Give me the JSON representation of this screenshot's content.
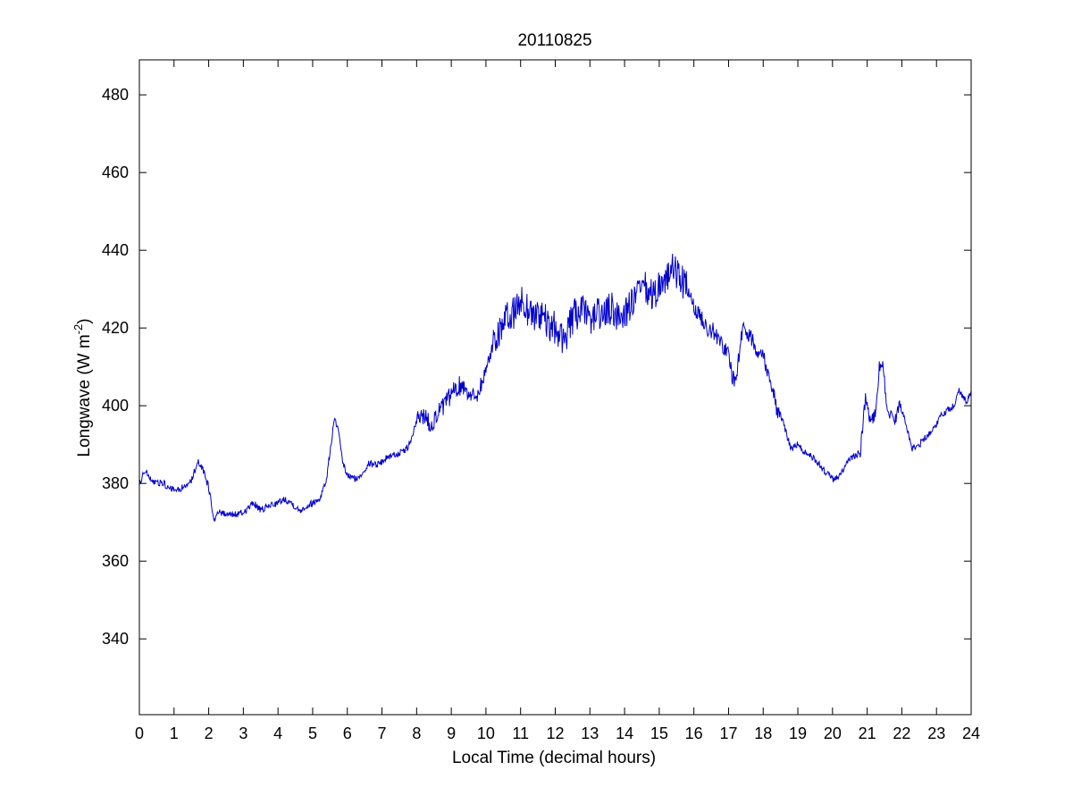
{
  "chart_data": {
    "type": "line",
    "title": "20110825",
    "xlabel": "Local Time (decimal hours)",
    "ylabel_main": "Longwave (W m",
    "ylabel_sup": "-2",
    "ylabel_close": ")",
    "xlim": [
      0,
      24
    ],
    "ylim": [
      320.5,
      489
    ],
    "xticks": [
      0,
      1,
      2,
      3,
      4,
      5,
      6,
      7,
      8,
      9,
      10,
      11,
      12,
      13,
      14,
      15,
      16,
      17,
      18,
      19,
      20,
      21,
      22,
      23,
      24
    ],
    "yticks": [
      340,
      360,
      380,
      400,
      420,
      440,
      460,
      480
    ],
    "grid": false,
    "line_color": "#0000cc",
    "series": [
      {
        "anchors": [
          [
            0.0,
            380
          ],
          [
            0.1,
            382
          ],
          [
            0.2,
            383
          ],
          [
            0.3,
            381
          ],
          [
            0.5,
            380
          ],
          [
            0.7,
            380
          ],
          [
            0.9,
            378.5
          ],
          [
            1.1,
            378.5
          ],
          [
            1.3,
            379
          ],
          [
            1.5,
            381
          ],
          [
            1.7,
            386
          ],
          [
            1.85,
            383
          ],
          [
            2.0,
            379
          ],
          [
            2.15,
            371
          ],
          [
            2.3,
            372.5
          ],
          [
            2.5,
            372
          ],
          [
            2.8,
            372
          ],
          [
            3.0,
            372.5
          ],
          [
            3.3,
            375
          ],
          [
            3.5,
            373
          ],
          [
            3.8,
            374.5
          ],
          [
            4.0,
            375
          ],
          [
            4.2,
            376
          ],
          [
            4.4,
            375
          ],
          [
            4.6,
            373
          ],
          [
            4.8,
            374
          ],
          [
            5.0,
            375
          ],
          [
            5.2,
            376
          ],
          [
            5.4,
            381
          ],
          [
            5.5,
            388
          ],
          [
            5.6,
            395
          ],
          [
            5.65,
            396.5
          ],
          [
            5.75,
            393
          ],
          [
            5.85,
            386
          ],
          [
            6.0,
            382
          ],
          [
            6.3,
            381
          ],
          [
            6.6,
            385
          ],
          [
            6.9,
            385
          ],
          [
            7.2,
            387
          ],
          [
            7.6,
            388
          ],
          [
            7.8,
            390
          ],
          [
            8.0,
            396
          ],
          [
            8.2,
            398
          ],
          [
            8.4,
            395
          ],
          [
            8.6,
            398
          ],
          [
            8.8,
            400
          ],
          [
            9.0,
            403
          ],
          [
            9.2,
            405
          ],
          [
            9.4,
            405
          ],
          [
            9.6,
            402
          ],
          [
            9.8,
            404
          ],
          [
            10.0,
            409
          ],
          [
            10.2,
            416
          ],
          [
            10.4,
            420
          ],
          [
            10.6,
            422
          ],
          [
            10.8,
            424
          ],
          [
            11.0,
            427
          ],
          [
            11.2,
            425
          ],
          [
            11.4,
            423
          ],
          [
            11.6,
            424
          ],
          [
            11.8,
            420
          ],
          [
            12.0,
            420
          ],
          [
            12.2,
            417
          ],
          [
            12.4,
            420
          ],
          [
            12.6,
            424
          ],
          [
            12.8,
            424
          ],
          [
            13.0,
            422
          ],
          [
            13.2,
            424
          ],
          [
            13.4,
            423
          ],
          [
            13.6,
            425
          ],
          [
            13.8,
            423
          ],
          [
            14.0,
            424
          ],
          [
            14.2,
            426
          ],
          [
            14.4,
            429
          ],
          [
            14.6,
            430
          ],
          [
            14.8,
            428
          ],
          [
            15.0,
            431
          ],
          [
            15.2,
            433
          ],
          [
            15.4,
            435
          ],
          [
            15.6,
            433
          ],
          [
            15.8,
            430
          ],
          [
            16.0,
            425
          ],
          [
            16.2,
            423
          ],
          [
            16.4,
            420
          ],
          [
            16.6,
            419
          ],
          [
            16.8,
            416
          ],
          [
            17.0,
            413
          ],
          [
            17.1,
            408
          ],
          [
            17.2,
            406
          ],
          [
            17.3,
            413
          ],
          [
            17.4,
            420
          ],
          [
            17.6,
            418
          ],
          [
            17.8,
            415
          ],
          [
            18.0,
            413
          ],
          [
            18.2,
            407
          ],
          [
            18.4,
            399
          ],
          [
            18.6,
            395
          ],
          [
            18.8,
            389
          ],
          [
            19.0,
            390
          ],
          [
            19.2,
            388
          ],
          [
            19.4,
            387
          ],
          [
            19.6,
            385
          ],
          [
            19.8,
            383
          ],
          [
            20.0,
            381
          ],
          [
            20.2,
            382
          ],
          [
            20.4,
            385
          ],
          [
            20.6,
            387
          ],
          [
            20.8,
            388
          ],
          [
            20.95,
            402
          ],
          [
            21.1,
            396
          ],
          [
            21.25,
            398
          ],
          [
            21.35,
            410
          ],
          [
            21.45,
            410
          ],
          [
            21.6,
            398
          ],
          [
            21.8,
            396
          ],
          [
            21.95,
            401
          ],
          [
            22.1,
            396
          ],
          [
            22.3,
            389
          ],
          [
            22.5,
            390
          ],
          [
            22.7,
            392
          ],
          [
            22.9,
            394
          ],
          [
            23.1,
            397
          ],
          [
            23.3,
            399
          ],
          [
            23.5,
            400
          ],
          [
            23.65,
            404
          ],
          [
            23.85,
            401
          ],
          [
            24.0,
            403
          ]
        ]
      }
    ]
  }
}
